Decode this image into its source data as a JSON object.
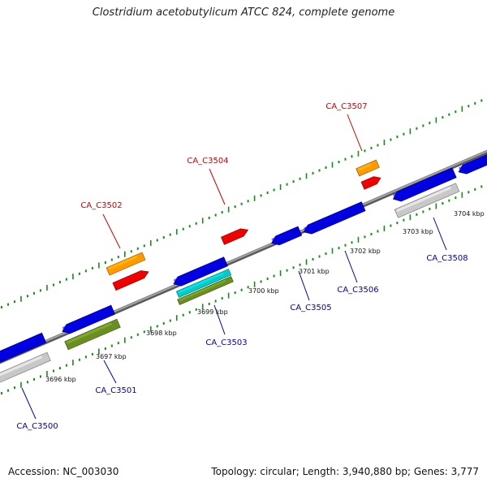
{
  "title": "Clostridium acetobutylicum ATCC 824, complete genome",
  "footer": {
    "accession": "Accession: NC_003030",
    "stats": "Topology: circular; Length: 3,940,880 bp; Genes: 3,777"
  },
  "colors": {
    "backbone": "#8a8a8a",
    "tick": "#1a8a1a",
    "forward_label": "#cc0000",
    "reverse_label": "#0000aa",
    "cds_blue": "#0000dd",
    "red": "#ee0000",
    "orange": "#ff9900",
    "cyan": "#00cccc",
    "olive": "#6b8e23",
    "gray": "#c8c8c8"
  },
  "kbp_labels": [
    "3696 kbp",
    "3697 kbp",
    "3698 kbp",
    "3699 kbp",
    "3700 kbp",
    "3701 kbp",
    "3702 kbp",
    "3703 kbp",
    "3704 kbp"
  ],
  "genes": [
    {
      "id": "CA_C3500",
      "strand": "reverse"
    },
    {
      "id": "CA_C3501",
      "strand": "reverse"
    },
    {
      "id": "CA_C3502",
      "strand": "forward"
    },
    {
      "id": "CA_C3503",
      "strand": "reverse"
    },
    {
      "id": "CA_C3504",
      "strand": "forward"
    },
    {
      "id": "CA_C3505",
      "strand": "reverse"
    },
    {
      "id": "CA_C3506",
      "strand": "reverse"
    },
    {
      "id": "CA_C3507",
      "strand": "forward"
    },
    {
      "id": "CA_C3508",
      "strand": "reverse"
    }
  ]
}
